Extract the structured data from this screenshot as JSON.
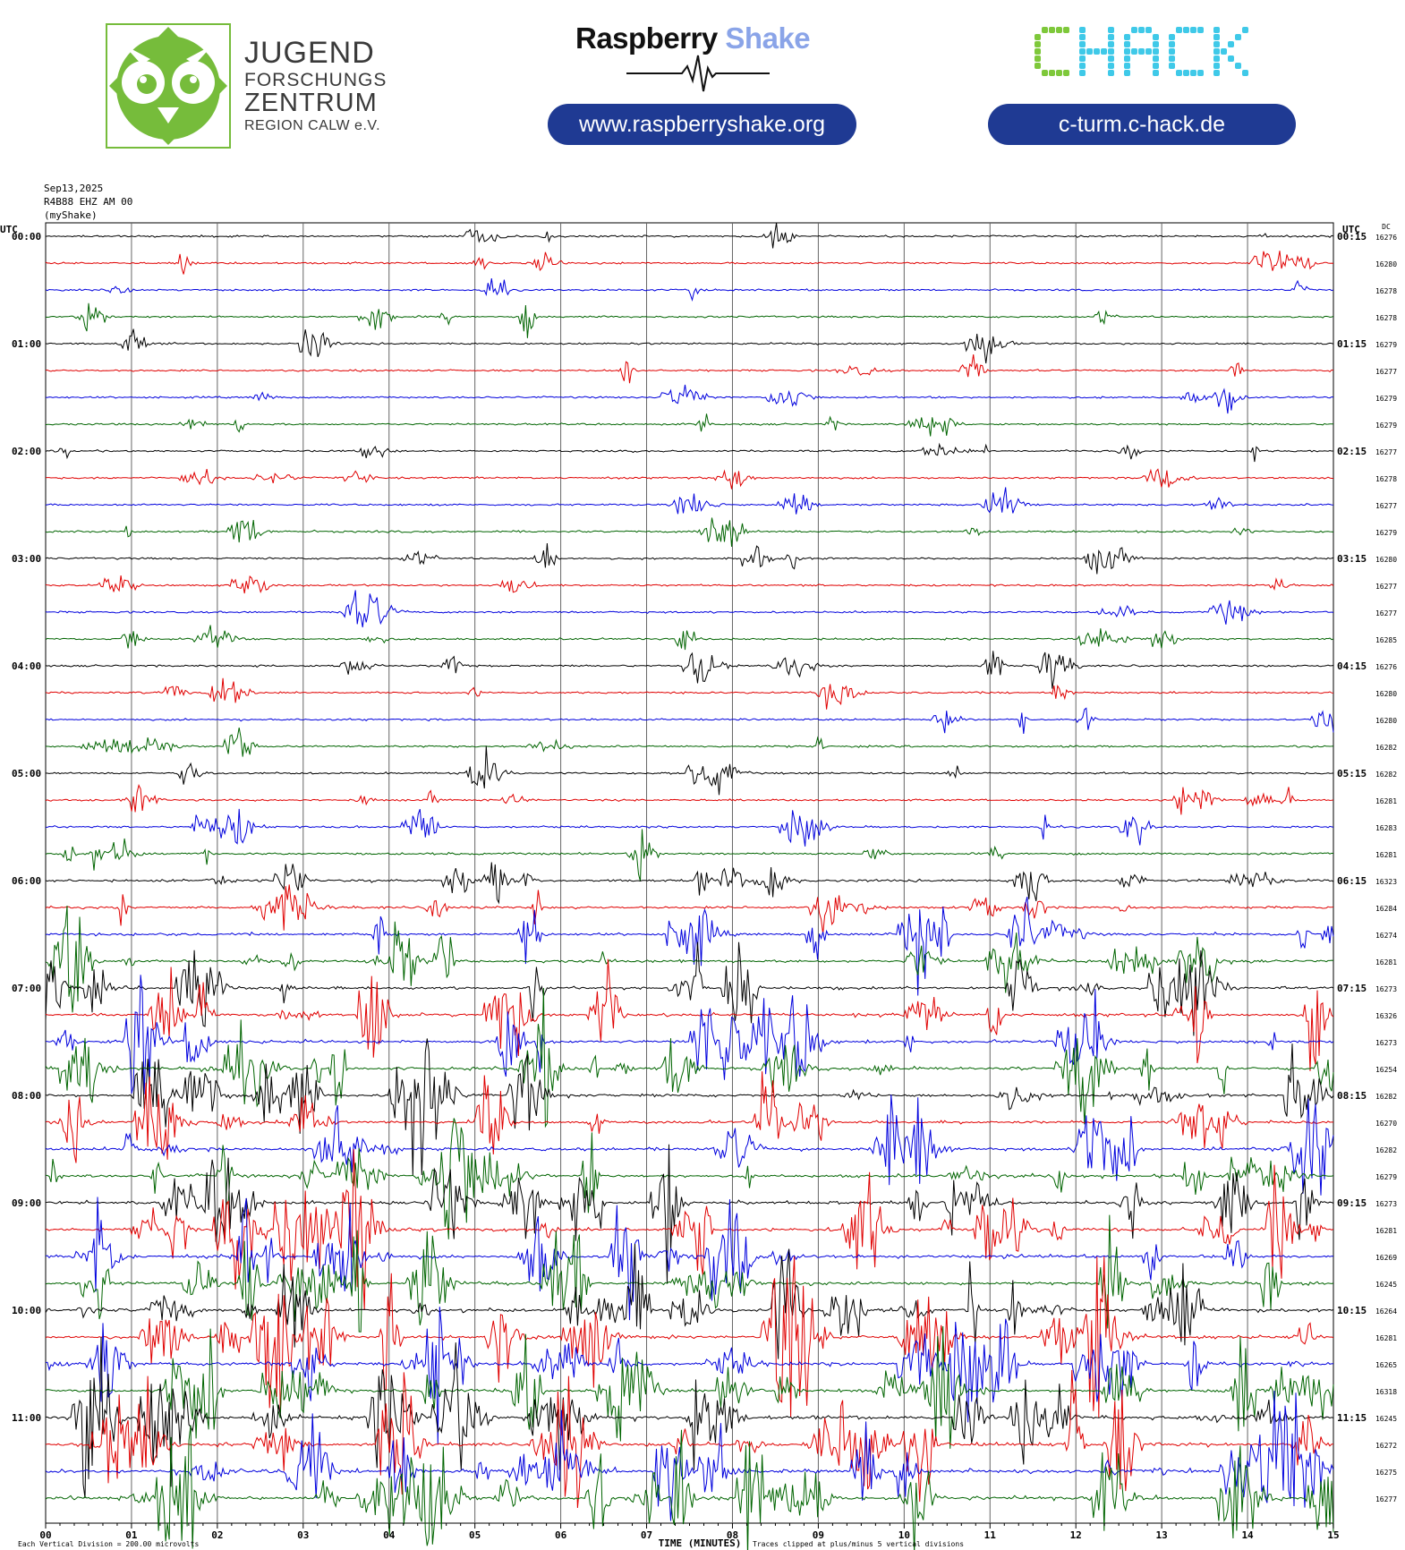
{
  "header": {
    "jfz_lines": [
      "JUGEND",
      "FORSCHUNGS",
      "ZENTRUM",
      "REGION CALW e.V."
    ],
    "rs_title_main": "Raspberry",
    "rs_title_accent": "Shake",
    "rs_url": "www.raspberryshake.org",
    "chack_url": "c-turm.c-hack.de",
    "colors": {
      "jfz_green": "#76bc3b",
      "pill_blue": "#1f3a93",
      "rs_accent": "#8aa4e8",
      "chack_green": "#7ec83a",
      "chack_cyan": "#3fc9e8"
    }
  },
  "meta": {
    "date": "Sep13,2025",
    "station": "R4B88 EHZ AM 00",
    "source": "(myShake)"
  },
  "chart_data": {
    "type": "helicorder",
    "left_axis_title": "UTC",
    "right_axis_title": "UTC",
    "dc_title": "DC",
    "xlabel": "TIME (MINUTES)",
    "x_ticks": [
      "00",
      "01",
      "02",
      "03",
      "04",
      "05",
      "06",
      "07",
      "08",
      "09",
      "10",
      "11",
      "12",
      "13",
      "14",
      "15"
    ],
    "xlim": [
      0,
      15
    ],
    "left_hour_labels": [
      "00:00",
      "01:00",
      "02:00",
      "03:00",
      "04:00",
      "05:00",
      "06:00",
      "07:00",
      "08:00",
      "09:00",
      "10:00",
      "11:00"
    ],
    "right_hour_labels": [
      "00:15",
      "01:15",
      "02:15",
      "03:15",
      "04:15",
      "05:15",
      "06:15",
      "07:15",
      "08:15",
      "09:15",
      "10:15",
      "11:15"
    ],
    "line_colors": [
      "#000000",
      "#e00000",
      "#0000dd",
      "#006400"
    ],
    "dc_offsets": [
      16276,
      16280,
      16278,
      16278,
      16279,
      16277,
      16279,
      16279,
      16277,
      16278,
      16277,
      16279,
      16280,
      16277,
      16277,
      16285,
      16276,
      16280,
      16280,
      16282,
      16282,
      16281,
      16283,
      16281,
      16323,
      16284,
      16274,
      16281,
      16273,
      16326,
      16273,
      16254,
      16282,
      16270,
      16282,
      16279,
      16273,
      16281,
      16269,
      16245,
      16264,
      16281,
      16265,
      16318,
      16245,
      16272,
      16275,
      16277
    ],
    "activity_levels": [
      0.15,
      0.15,
      0.12,
      0.12,
      0.15,
      0.12,
      0.12,
      0.12,
      0.15,
      0.15,
      0.15,
      0.25,
      0.15,
      0.15,
      0.2,
      0.2,
      0.2,
      0.2,
      0.2,
      0.2,
      0.2,
      0.2,
      0.2,
      0.3,
      0.5,
      0.5,
      0.6,
      0.7,
      0.7,
      0.8,
      0.8,
      0.8,
      0.8,
      0.8,
      0.8,
      0.9,
      0.9,
      1.0,
      1.0,
      1.0,
      1.1,
      1.1,
      1.1,
      1.1,
      1.2,
      1.2,
      1.2,
      1.2
    ],
    "footer_left": "Each Vertical Division =  200.00 microvolts",
    "footer_right": "Traces clipped at plus/minus 5 vertical divisions"
  }
}
